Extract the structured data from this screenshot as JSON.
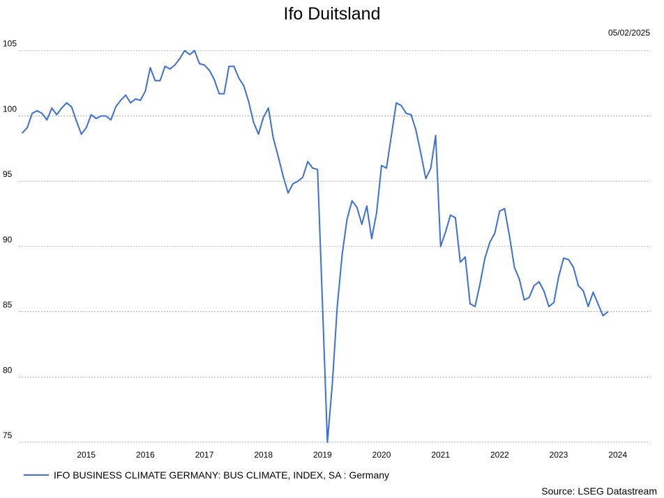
{
  "header": {
    "title": "Ifo Duitsland",
    "date": "05/02/2025"
  },
  "footer": {
    "source": "Source: LSEG Datastream"
  },
  "colors": {
    "line": "#3a6fd8",
    "grid": "#9a9a9a"
  },
  "chart_data": {
    "type": "line",
    "title": "Ifo Duitsland",
    "xlabel": "",
    "ylabel": "",
    "ylim": [
      75,
      106
    ],
    "xlim": [
      "2014-06",
      "2025-01"
    ],
    "y_ticks": [
      75,
      80,
      85,
      90,
      95,
      100,
      105
    ],
    "x_ticks": [
      "2015",
      "2016",
      "2017",
      "2018",
      "2019",
      "2020",
      "2021",
      "2022",
      "2023",
      "2024"
    ],
    "grid": true,
    "legend_position": "bottom-left",
    "series": [
      {
        "name": "IFO BUSINESS CLIMATE GERMANY: BUS CLIMATE, INDEX, SA : Germany",
        "color": "#3a6fd8",
        "points": [
          [
            "2014-06",
            98.7
          ],
          [
            "2014-07",
            99.1
          ],
          [
            "2014-08",
            100.2
          ],
          [
            "2014-09",
            100.4
          ],
          [
            "2014-10",
            100.2
          ],
          [
            "2014-11",
            99.7
          ],
          [
            "2014-12",
            100.6
          ],
          [
            "2015-01",
            100.1
          ],
          [
            "2015-02",
            100.6
          ],
          [
            "2015-03",
            101.0
          ],
          [
            "2015-04",
            100.7
          ],
          [
            "2015-05",
            99.6
          ],
          [
            "2015-06",
            98.6
          ],
          [
            "2015-07",
            99.1
          ],
          [
            "2015-08",
            100.1
          ],
          [
            "2015-09",
            99.8
          ],
          [
            "2015-10",
            100.0
          ],
          [
            "2015-11",
            100.0
          ],
          [
            "2015-12",
            99.7
          ],
          [
            "2016-01",
            100.7
          ],
          [
            "2016-02",
            101.2
          ],
          [
            "2016-03",
            101.6
          ],
          [
            "2016-04",
            101.0
          ],
          [
            "2016-05",
            101.3
          ],
          [
            "2016-06",
            101.2
          ],
          [
            "2016-07",
            101.9
          ],
          [
            "2016-08",
            103.7
          ],
          [
            "2016-09",
            102.7
          ],
          [
            "2016-10",
            102.7
          ],
          [
            "2016-11",
            103.8
          ],
          [
            "2016-12",
            103.6
          ],
          [
            "2017-01",
            103.9
          ],
          [
            "2017-02",
            104.4
          ],
          [
            "2017-03",
            105.0
          ],
          [
            "2017-04",
            104.7
          ],
          [
            "2017-05",
            105.0
          ],
          [
            "2017-06",
            104.0
          ],
          [
            "2017-07",
            103.9
          ],
          [
            "2017-08",
            103.5
          ],
          [
            "2017-09",
            102.8
          ],
          [
            "2017-10",
            101.7
          ],
          [
            "2017-11",
            101.7
          ],
          [
            "2017-12",
            103.8
          ],
          [
            "2018-01",
            103.8
          ],
          [
            "2018-02",
            102.9
          ],
          [
            "2018-03",
            102.3
          ],
          [
            "2018-04",
            101.1
          ],
          [
            "2018-05",
            99.5
          ],
          [
            "2018-06",
            98.6
          ],
          [
            "2018-07",
            99.9
          ],
          [
            "2018-08",
            100.6
          ],
          [
            "2018-09",
            98.3
          ],
          [
            "2018-10",
            96.9
          ],
          [
            "2018-11",
            95.4
          ],
          [
            "2018-12",
            94.1
          ],
          [
            "2019-01",
            94.8
          ],
          [
            "2019-02",
            95.0
          ],
          [
            "2019-03",
            95.3
          ],
          [
            "2019-04",
            96.5
          ],
          [
            "2019-05",
            96.0
          ],
          [
            "2019-06",
            95.9
          ],
          [
            "2019-07",
            85.5
          ],
          [
            "2019-08",
            75.0
          ],
          [
            "2019-09",
            79.5
          ],
          [
            "2019-10",
            85.4
          ],
          [
            "2019-11",
            89.4
          ],
          [
            "2019-12",
            92.1
          ],
          [
            "2020-01",
            93.5
          ],
          [
            "2020-02",
            93.0
          ],
          [
            "2020-03",
            91.7
          ],
          [
            "2020-04",
            93.1
          ],
          [
            "2020-05",
            90.6
          ],
          [
            "2020-06",
            92.6
          ],
          [
            "2020-07",
            96.2
          ],
          [
            "2020-08",
            96.0
          ],
          [
            "2020-09",
            98.5
          ],
          [
            "2020-10",
            101.0
          ],
          [
            "2020-11",
            100.8
          ],
          [
            "2020-12",
            100.2
          ],
          [
            "2021-01",
            100.1
          ],
          [
            "2021-02",
            98.9
          ],
          [
            "2021-03",
            97.1
          ],
          [
            "2021-04",
            95.2
          ],
          [
            "2021-05",
            96.0
          ],
          [
            "2021-06",
            98.5
          ],
          [
            "2021-07",
            90.0
          ],
          [
            "2021-08",
            91.1
          ],
          [
            "2021-09",
            92.4
          ],
          [
            "2021-10",
            92.2
          ],
          [
            "2021-11",
            88.8
          ],
          [
            "2021-12",
            89.2
          ],
          [
            "2022-01",
            85.6
          ],
          [
            "2022-02",
            85.4
          ],
          [
            "2022-03",
            87.1
          ],
          [
            "2022-04",
            89.1
          ],
          [
            "2022-05",
            90.3
          ],
          [
            "2022-06",
            91.0
          ],
          [
            "2022-07",
            92.7
          ],
          [
            "2022-08",
            92.9
          ],
          [
            "2022-09",
            90.8
          ],
          [
            "2022-10",
            88.4
          ],
          [
            "2022-11",
            87.5
          ],
          [
            "2022-12",
            85.9
          ],
          [
            "2023-01",
            86.1
          ],
          [
            "2023-02",
            87.0
          ],
          [
            "2023-03",
            87.3
          ],
          [
            "2023-04",
            86.6
          ],
          [
            "2023-05",
            85.4
          ],
          [
            "2023-06",
            85.7
          ],
          [
            "2023-07",
            87.7
          ],
          [
            "2023-08",
            89.1
          ],
          [
            "2023-09",
            89.0
          ],
          [
            "2023-10",
            88.4
          ],
          [
            "2023-11",
            87.0
          ],
          [
            "2023-12",
            86.6
          ],
          [
            "2024-01",
            85.4
          ],
          [
            "2024-02",
            86.5
          ],
          [
            "2024-03",
            85.6
          ],
          [
            "2024-04",
            84.7
          ],
          [
            "2024-05",
            85.0
          ]
        ]
      }
    ]
  }
}
